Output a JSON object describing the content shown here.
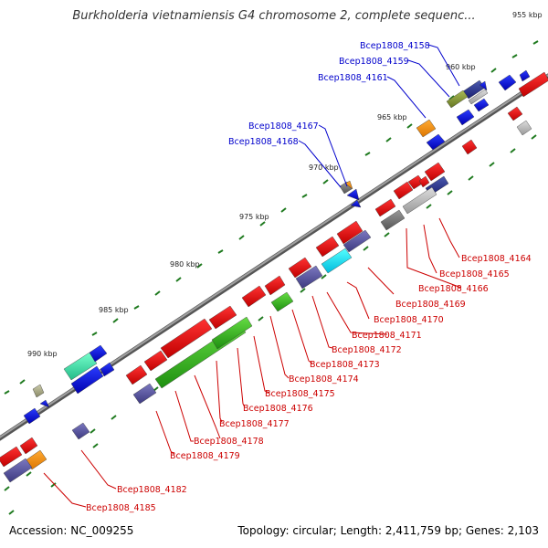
{
  "title": "Burkholderia vietnamiensis G4 chromosome 2, complete sequenc...",
  "footer": {
    "accession": "Accession: NC_009255",
    "summary": "Topology: circular; Length: 2,411,759 bp; Genes: 2,103"
  },
  "kbp_labels": [
    "955 kbp",
    "960 kbp",
    "965 kbp",
    "970 kbp",
    "975 kbp",
    "980 kbp",
    "985 kbp",
    "990 kbp"
  ],
  "gene_labels_top": [
    "Bcep1808_4158",
    "Bcep1808_4159",
    "Bcep1808_4161",
    "Bcep1808_4167",
    "Bcep1808_4168"
  ],
  "gene_labels_bottom": [
    "Bcep1808_4164",
    "Bcep1808_4165",
    "Bcep1808_4166",
    "Bcep1808_4169",
    "Bcep1808_4170",
    "Bcep1808_4171",
    "Bcep1808_4172",
    "Bcep1808_4173",
    "Bcep1808_4174",
    "Bcep1808_4175",
    "Bcep1808_4176",
    "Bcep1808_4177",
    "Bcep1808_4178",
    "Bcep1808_4179",
    "Bcep1808_4182",
    "Bcep1808_4185"
  ],
  "colors": {
    "backbone": "#808080",
    "tick": "#1f7a1f",
    "forward_cds": "#0000dd",
    "reverse_cds": "#dd0000",
    "label_top": "#0000cc",
    "label_bottom": "#cc0000"
  }
}
